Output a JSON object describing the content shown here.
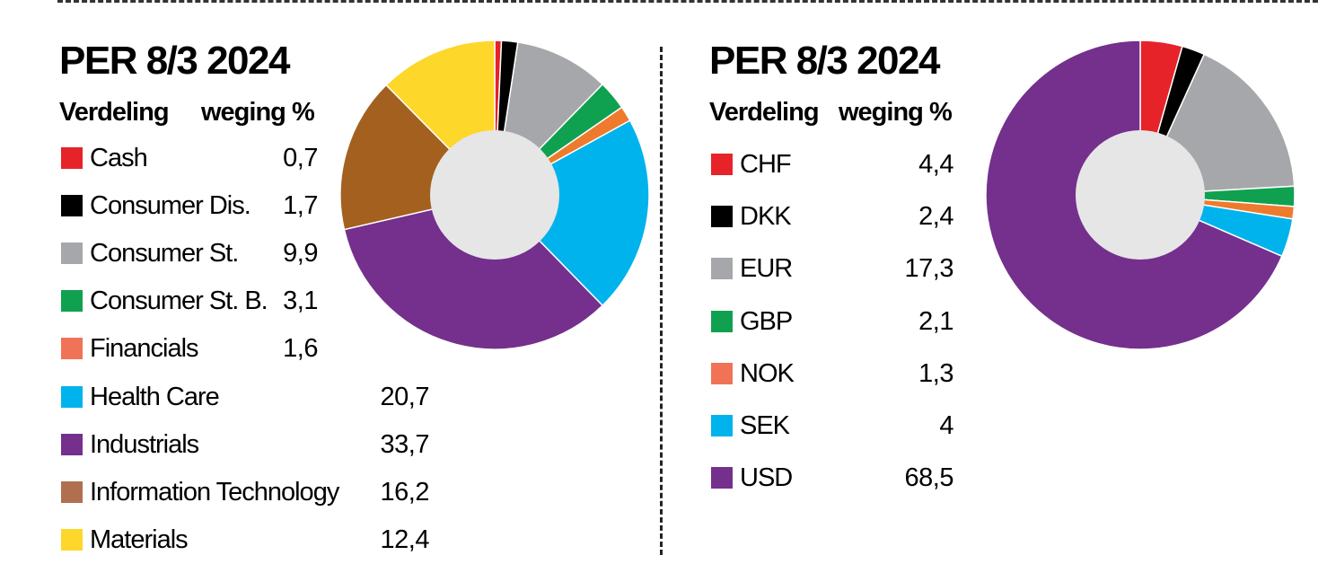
{
  "colors": {
    "red": "#e52329",
    "black": "#000000",
    "grey": "#a6a7aa",
    "green": "#10a150",
    "orange": "#ee7a2e",
    "cyan": "#00b3ec",
    "purple": "#74308c",
    "brown": "#a3601e",
    "yellow": "#fdd72a",
    "hole": "#e6e6e7"
  },
  "chart_data": [
    {
      "type": "pie",
      "title": "PER 8/3 2024",
      "col_label": "Verdeling",
      "col_value": "weging %",
      "donut": true,
      "items": [
        {
          "label": "Cash",
          "value": 0.7,
          "value_text": "0,7",
          "color": "#e52329",
          "legend_color": "#e52329"
        },
        {
          "label": "Consumer Dis.",
          "value": 1.7,
          "value_text": "1,7",
          "color": "#000000",
          "legend_color": "#000000"
        },
        {
          "label": "Consumer St.",
          "value": 9.9,
          "value_text": "9,9",
          "color": "#a6a7aa",
          "legend_color": "#a6a7aa"
        },
        {
          "label": "Consumer St. B.",
          "value": 3.1,
          "value_text": "3,1",
          "color": "#10a150",
          "legend_color": "#10a150"
        },
        {
          "label": "Financials",
          "value": 1.6,
          "value_text": "1,6",
          "color": "#ee7a2e",
          "legend_color": "#f07358"
        },
        {
          "label": "Health Care",
          "value": 20.7,
          "value_text": "20,7",
          "color": "#00b3ec",
          "legend_color": "#00b3ec"
        },
        {
          "label": "Industrials",
          "value": 33.7,
          "value_text": "33,7",
          "color": "#74308c",
          "legend_color": "#74308c"
        },
        {
          "label": "Information Technology",
          "value": 16.2,
          "value_text": "16,2",
          "color": "#a3601e",
          "legend_color": "#b07050"
        },
        {
          "label": "Materials",
          "value": 12.4,
          "value_text": "12,4",
          "color": "#fdd72a",
          "legend_color": "#fdd72a"
        }
      ]
    },
    {
      "type": "pie",
      "title": "PER 8/3 2024",
      "col_label": "Verdeling",
      "col_value": "weging %",
      "donut": true,
      "items": [
        {
          "label": "CHF",
          "value": 4.4,
          "value_text": "4,4",
          "color": "#e52329",
          "legend_color": "#e52329"
        },
        {
          "label": "DKK",
          "value": 2.4,
          "value_text": "2,4",
          "color": "#000000",
          "legend_color": "#000000"
        },
        {
          "label": "EUR",
          "value": 17.3,
          "value_text": "17,3",
          "color": "#a6a7aa",
          "legend_color": "#a6a7aa"
        },
        {
          "label": "GBP",
          "value": 2.1,
          "value_text": "2,1",
          "color": "#10a150",
          "legend_color": "#10a150"
        },
        {
          "label": "NOK",
          "value": 1.3,
          "value_text": "1,3",
          "color": "#ee7a2e",
          "legend_color": "#f07358"
        },
        {
          "label": "SEK",
          "value": 4,
          "value_text": "4",
          "color": "#00b3ec",
          "legend_color": "#00b3ec"
        },
        {
          "label": "USD",
          "value": 68.5,
          "value_text": "68,5",
          "color": "#74308c",
          "legend_color": "#74308c"
        }
      ]
    }
  ]
}
